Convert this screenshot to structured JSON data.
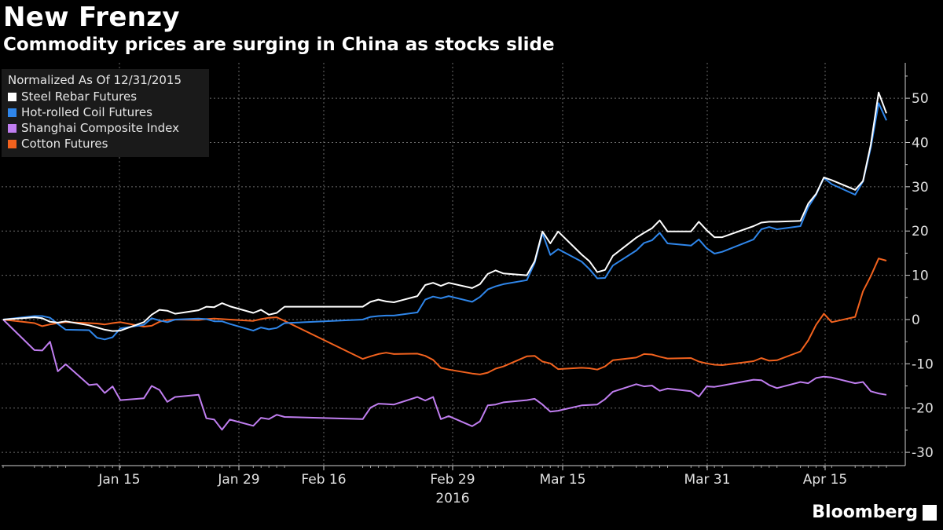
{
  "title": "New Frenzy",
  "subtitle": "Commodity prices are surging in China as stocks slide",
  "brand": "Bloomberg",
  "chart_data": {
    "type": "line",
    "legend_title": "Normalized As Of 12/31/2015",
    "legend_position": "top-left",
    "grid": true,
    "x_tick_labels": [
      "Jan 15",
      "Jan 29",
      "Feb 16",
      "Feb 29",
      "Mar 15",
      "Mar 31",
      "Apr 15"
    ],
    "x_year_label": "2016",
    "y_tick_labels": [
      "50",
      "40",
      "30",
      "20",
      "10",
      "0",
      "-10",
      "-20",
      "-30"
    ],
    "y_ticks": [
      50,
      40,
      30,
      20,
      10,
      0,
      -10,
      -20,
      -30
    ],
    "ylim": [
      -33,
      58
    ],
    "x": [
      "2015-12-31",
      "2016-01-04",
      "2016-01-05",
      "2016-01-06",
      "2016-01-07",
      "2016-01-08",
      "2016-01-11",
      "2016-01-12",
      "2016-01-13",
      "2016-01-14",
      "2016-01-15",
      "2016-01-18",
      "2016-01-19",
      "2016-01-20",
      "2016-01-21",
      "2016-01-22",
      "2016-01-25",
      "2016-01-26",
      "2016-01-27",
      "2016-01-28",
      "2016-01-29",
      "2016-02-01",
      "2016-02-02",
      "2016-02-03",
      "2016-02-04",
      "2016-02-05",
      "2016-02-15",
      "2016-02-16",
      "2016-02-17",
      "2016-02-18",
      "2016-02-19",
      "2016-02-22",
      "2016-02-23",
      "2016-02-24",
      "2016-02-25",
      "2016-02-26",
      "2016-02-29",
      "2016-03-01",
      "2016-03-02",
      "2016-03-03",
      "2016-03-04",
      "2016-03-07",
      "2016-03-08",
      "2016-03-09",
      "2016-03-10",
      "2016-03-11",
      "2016-03-14",
      "2016-03-15",
      "2016-03-16",
      "2016-03-17",
      "2016-03-18",
      "2016-03-21",
      "2016-03-22",
      "2016-03-23",
      "2016-03-24",
      "2016-03-25",
      "2016-03-28",
      "2016-03-29",
      "2016-03-30",
      "2016-03-31",
      "2016-04-01",
      "2016-04-05",
      "2016-04-06",
      "2016-04-07",
      "2016-04-08",
      "2016-04-11",
      "2016-04-12",
      "2016-04-13",
      "2016-04-14",
      "2016-04-15",
      "2016-04-18",
      "2016-04-19",
      "2016-04-20",
      "2016-04-21",
      "2016-04-22"
    ],
    "series": [
      {
        "name": "Steel Rebar Futures",
        "color": "#ffffff",
        "values": [
          0.0,
          0.5,
          0.3,
          -0.5,
          -0.7,
          -0.4,
          -1.3,
          -1.8,
          -2.3,
          -2.6,
          -2.5,
          -0.6,
          1.1,
          2.2,
          2.0,
          1.3,
          2.1,
          2.9,
          2.8,
          3.7,
          3.0,
          1.5,
          2.2,
          1.1,
          1.5,
          2.9,
          2.9,
          4.0,
          4.5,
          4.1,
          3.9,
          5.3,
          7.8,
          8.3,
          7.6,
          8.3,
          7.1,
          8.0,
          10.3,
          11.1,
          10.4,
          10.0,
          13.2,
          19.9,
          17.2,
          19.9,
          14.7,
          13.2,
          10.7,
          11.2,
          14.4,
          18.5,
          19.6,
          20.6,
          22.4,
          19.9,
          19.9,
          22.1,
          20.2,
          18.6,
          18.6,
          21.1,
          21.9,
          22.1,
          22.1,
          22.3,
          26.2,
          28.4,
          32.1,
          31.5,
          29.3,
          31.3,
          39.5,
          51.3,
          46.6
        ]
      },
      {
        "name": "Hot-rolled Coil Futures",
        "color": "#2f86ea",
        "values": [
          0.0,
          0.8,
          0.8,
          0.4,
          -1.0,
          -2.3,
          -2.4,
          -4.1,
          -4.5,
          -4.0,
          -2.0,
          -1.2,
          0.3,
          -0.2,
          -0.6,
          0.0,
          0.2,
          0.1,
          -0.4,
          -0.4,
          -1.0,
          -2.5,
          -1.8,
          -2.2,
          -1.9,
          -0.8,
          0.0,
          0.6,
          0.8,
          0.9,
          0.9,
          1.6,
          4.5,
          5.2,
          4.8,
          5.3,
          4.0,
          5.1,
          6.8,
          7.5,
          8.0,
          8.9,
          12.8,
          19.5,
          14.6,
          15.9,
          13.1,
          11.4,
          9.3,
          9.4,
          12.2,
          15.6,
          17.3,
          17.9,
          19.6,
          17.2,
          16.7,
          18.1,
          16.1,
          14.9,
          15.3,
          18.1,
          20.4,
          20.9,
          20.4,
          21.1,
          25.4,
          28.2,
          32.0,
          30.6,
          28.2,
          31.2,
          38.8,
          48.9,
          45.0
        ]
      },
      {
        "name": "Shanghai Composite Index",
        "color": "#c07ef0",
        "values": [
          0.0,
          -6.9,
          -7.0,
          -5.0,
          -11.7,
          -10.1,
          -14.8,
          -14.6,
          -16.6,
          -15.1,
          -18.2,
          -17.8,
          -15.0,
          -15.9,
          -18.6,
          -17.5,
          -17.0,
          -22.3,
          -22.6,
          -24.9,
          -22.6,
          -24.0,
          -22.2,
          -22.5,
          -21.5,
          -22.0,
          -22.5,
          -19.9,
          -19.0,
          -19.1,
          -19.2,
          -17.5,
          -18.3,
          -17.5,
          -22.5,
          -21.8,
          -24.1,
          -23.0,
          -19.4,
          -19.2,
          -18.7,
          -18.2,
          -17.9,
          -19.2,
          -20.8,
          -20.6,
          -19.4,
          -19.3,
          -19.2,
          -18.0,
          -16.3,
          -14.6,
          -15.1,
          -14.9,
          -16.1,
          -15.6,
          -16.2,
          -17.4,
          -15.1,
          -15.2,
          -14.9,
          -13.6,
          -13.7,
          -14.8,
          -15.5,
          -14.1,
          -14.4,
          -13.2,
          -12.9,
          -13.1,
          -14.4,
          -14.1,
          -16.2,
          -16.7,
          -17.0
        ]
      },
      {
        "name": "Cotton Futures",
        "color": "#f2621e",
        "values": [
          0.0,
          -0.8,
          -1.5,
          -1.1,
          -0.8,
          -0.6,
          -0.8,
          -0.9,
          -1.1,
          -0.8,
          -0.6,
          -1.6,
          -1.4,
          -0.5,
          -0.1,
          0.0,
          -0.1,
          0.1,
          0.2,
          0.1,
          0.0,
          -0.3,
          0.1,
          0.4,
          0.5,
          -0.3,
          -8.9,
          -8.3,
          -7.8,
          -7.5,
          -7.8,
          -7.7,
          -8.2,
          -9.1,
          -10.9,
          -11.3,
          -12.2,
          -12.4,
          -12.0,
          -11.1,
          -10.6,
          -8.3,
          -8.2,
          -9.5,
          -9.9,
          -11.2,
          -10.9,
          -11.0,
          -11.3,
          -10.6,
          -9.2,
          -8.6,
          -7.8,
          -7.9,
          -8.4,
          -8.8,
          -8.7,
          -9.5,
          -9.9,
          -10.2,
          -10.3,
          -9.4,
          -8.7,
          -9.3,
          -9.2,
          -7.2,
          -4.7,
          -1.2,
          1.3,
          -0.6,
          0.6,
          6.4,
          9.8,
          13.8,
          13.3
        ]
      }
    ]
  }
}
